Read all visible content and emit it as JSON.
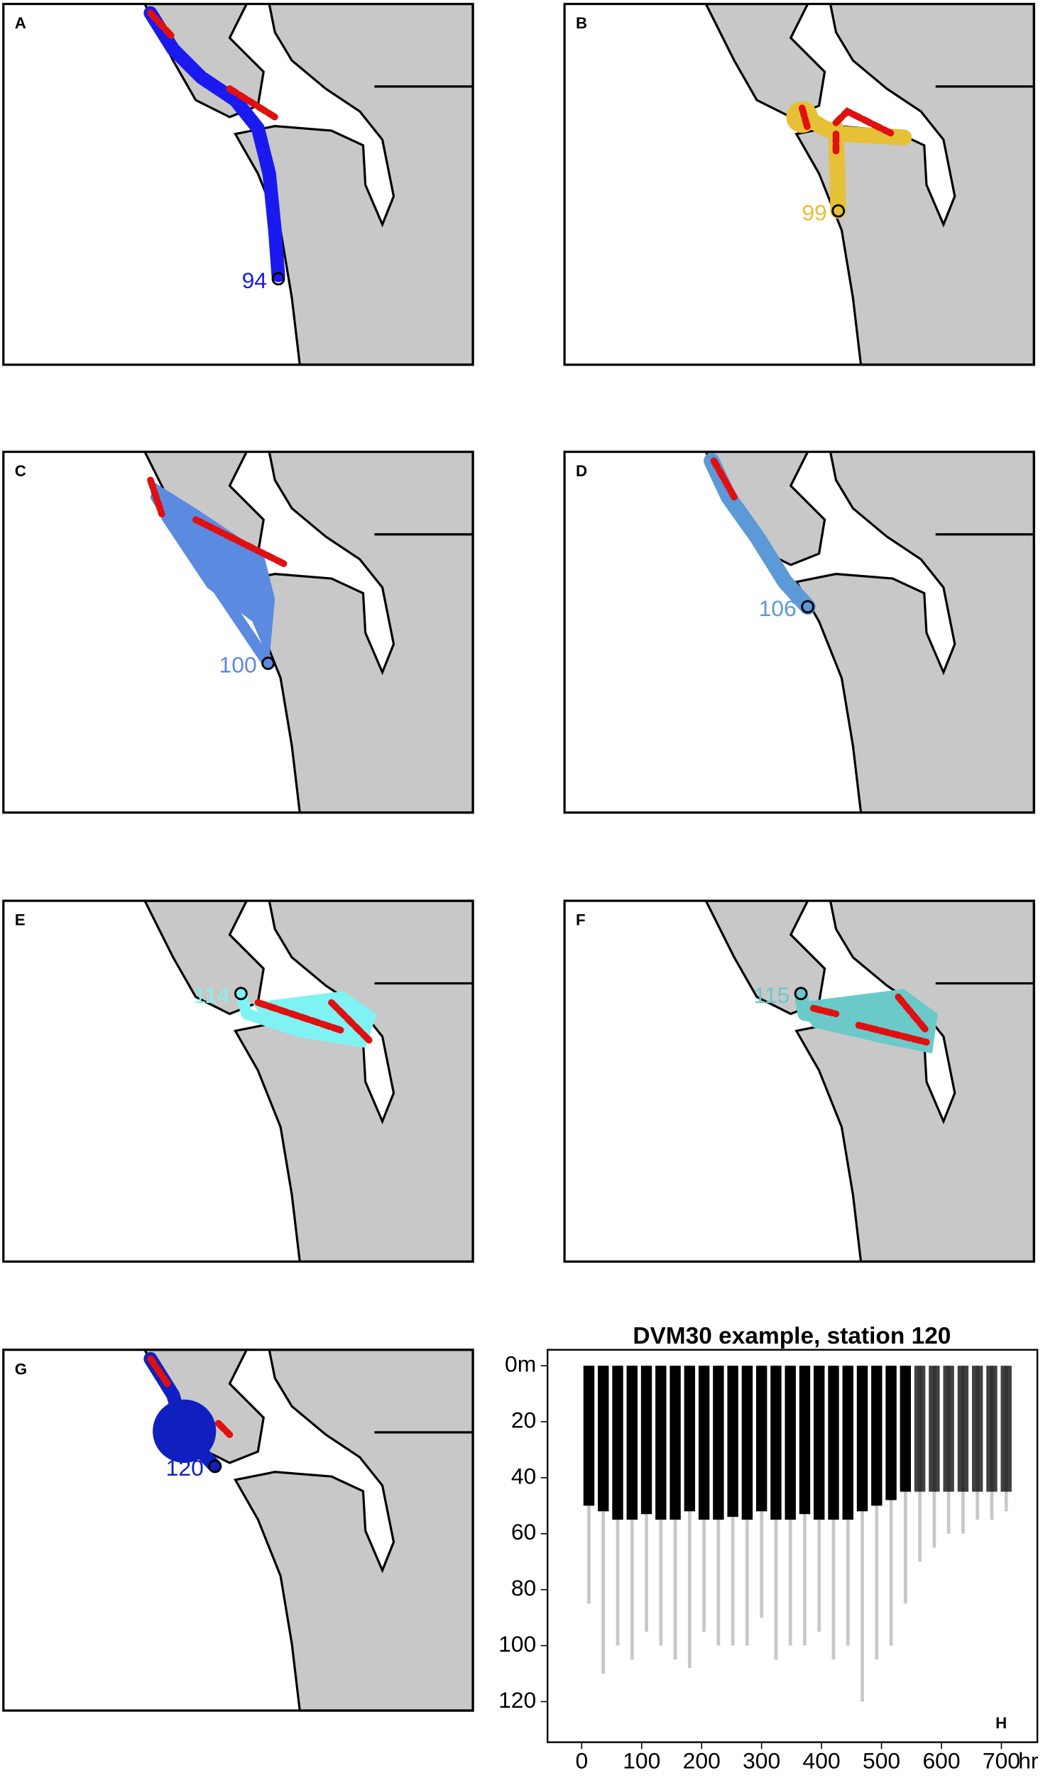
{
  "maps": [
    {
      "label": "A",
      "station": 94,
      "color": "#1a1aee"
    },
    {
      "label": "B",
      "station": 99,
      "color": "#e6c036"
    },
    {
      "label": "C",
      "station": 100,
      "color": "#5b8be0"
    },
    {
      "label": "D",
      "station": 106,
      "color": "#5b9ad6"
    },
    {
      "label": "E",
      "station": 114,
      "color": "#7ff3f3"
    },
    {
      "label": "F",
      "station": 115,
      "color": "#6cc9c9"
    },
    {
      "label": "G",
      "station": 120,
      "color": "#1020c0"
    }
  ],
  "chart_data": {
    "type": "dvm",
    "title": "DVM30 example, station 120",
    "panel_label": "H",
    "x_unit": "hr",
    "x": [
      12,
      36,
      60,
      84,
      108,
      132,
      156,
      180,
      204,
      228,
      252,
      276,
      300,
      324,
      348,
      372,
      396,
      420,
      444,
      468,
      492,
      516,
      540,
      564,
      588,
      612,
      636,
      660,
      684,
      708
    ],
    "series": [
      {
        "color": "#000000",
        "values": [
          50,
          52,
          55,
          55,
          53,
          55,
          55,
          52,
          55,
          55,
          54,
          55,
          52,
          55,
          55,
          53,
          55,
          55,
          55,
          52,
          50,
          48,
          45,
          45,
          45,
          45,
          45,
          45,
          45,
          45
        ]
      },
      {
        "color": "#bbbbbb",
        "values": [
          85,
          110,
          100,
          105,
          95,
          100,
          105,
          108,
          95,
          100,
          100,
          100,
          90,
          105,
          100,
          100,
          95,
          105,
          100,
          120,
          105,
          100,
          85,
          70,
          65,
          60,
          60,
          55,
          55,
          52
        ]
      }
    ],
    "xlim": [
      -57,
      760
    ],
    "ylim": [
      134.5,
      -5.7
    ],
    "y_inverted": true,
    "xticks": [
      0,
      100,
      200,
      300,
      400,
      500,
      600,
      700
    ],
    "yticks": [
      {
        "value": 0,
        "label": "0m"
      },
      20,
      40,
      60,
      80,
      100,
      120
    ]
  }
}
